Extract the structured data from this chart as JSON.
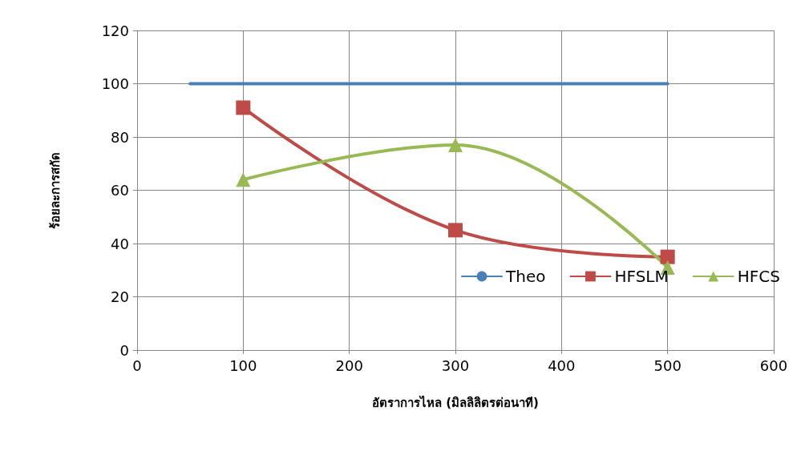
{
  "chart_data": {
    "type": "line",
    "xlabel": "อัตราการไหล (มิลลิลิตรต่อนาที)",
    "ylabel": "ร้อยละการสกัด",
    "xlim": [
      0,
      600
    ],
    "xticks": [
      0,
      100,
      200,
      300,
      400,
      500,
      600
    ],
    "ylim": [
      0,
      120
    ],
    "yticks": [
      0,
      20,
      40,
      60,
      80,
      100,
      120
    ],
    "grid": true,
    "legend": "bottom",
    "series": [
      {
        "name": "Theo",
        "color": "#4a7ebb",
        "x": [
          50,
          500
        ],
        "values": [
          100,
          100
        ],
        "marker": "none"
      },
      {
        "name": "HFSLM",
        "color": "#be4b48",
        "x": [
          100,
          300,
          500
        ],
        "values": [
          91,
          45,
          35
        ],
        "marker": "square"
      },
      {
        "name": "HFCS",
        "color": "#98b954",
        "x": [
          100,
          300,
          500
        ],
        "values": [
          64,
          77,
          31
        ],
        "marker": "triangle"
      }
    ]
  }
}
